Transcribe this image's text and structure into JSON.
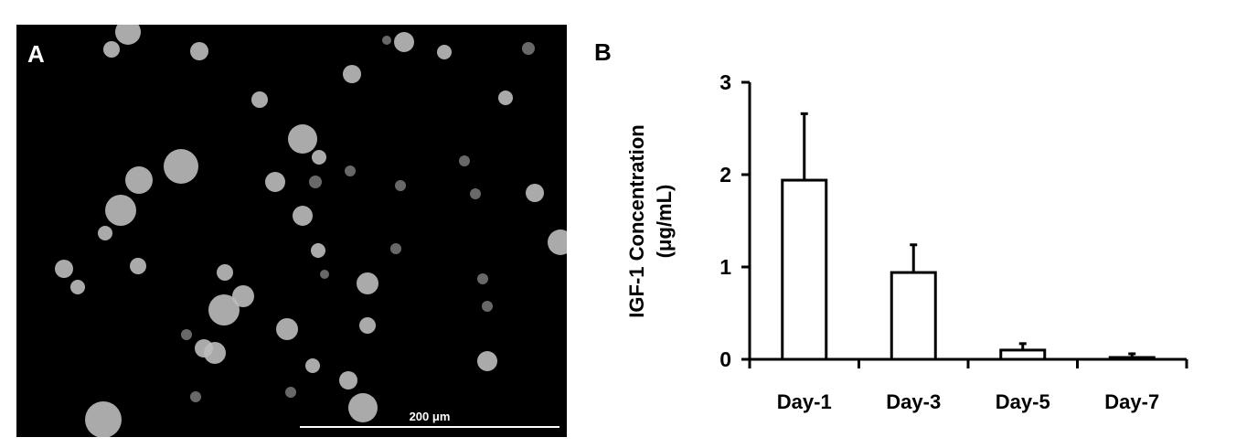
{
  "panels": {
    "a_label": "A",
    "b_label": "B"
  },
  "micrograph": {
    "scale_bar_label": "200 μm",
    "background": "#000000",
    "particle_color": "#bdbdbd"
  },
  "chart_data": {
    "type": "bar",
    "title": "",
    "xlabel": "",
    "ylabel_line1": "IGF-1 Concentration",
    "ylabel_line2": "(μg/mL)",
    "categories": [
      "Day-1",
      "Day-3",
      "Day-5",
      "Day-7"
    ],
    "values": [
      1.94,
      0.94,
      0.1,
      0.02
    ],
    "error_upper": [
      0.72,
      0.3,
      0.07,
      0.04
    ],
    "ylim": [
      0,
      3
    ],
    "yticks": [
      "0",
      "1",
      "2",
      "3"
    ],
    "bar_fill": "#ffffff",
    "bar_stroke": "#000000",
    "grid": false
  }
}
